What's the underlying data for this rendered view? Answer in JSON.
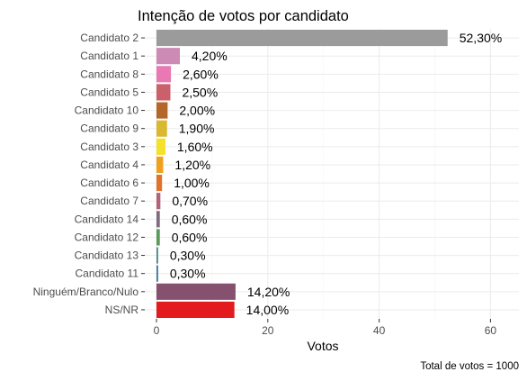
{
  "chart_data": {
    "type": "bar",
    "orientation": "horizontal",
    "title": "Intenção de votos por candidato",
    "xlabel": "Votos",
    "ylabel": "",
    "caption": "Total de votos = 1000",
    "xlim": [
      0,
      62
    ],
    "x_ticks": [
      0,
      20,
      40,
      60
    ],
    "grid": true,
    "legend": "none",
    "categories": [
      "Candidato 2",
      "Candidato 1",
      "Candidato 8",
      "Candidato 5",
      "Candidato 10",
      "Candidato 9",
      "Candidato 3",
      "Candidato 4",
      "Candidato 6",
      "Candidato 7",
      "Candidato 14",
      "Candidato 12",
      "Candidato 13",
      "Candidato 11",
      "Ninguém/Branco/Nulo",
      "NS/NR"
    ],
    "values": [
      52.3,
      4.2,
      2.6,
      2.5,
      2.0,
      1.9,
      1.6,
      1.2,
      1.0,
      0.7,
      0.6,
      0.6,
      0.3,
      0.3,
      14.2,
      14.0
    ],
    "value_labels": [
      "52,30%",
      "4,20%",
      "2,60%",
      "2,50%",
      "2,00%",
      "1,90%",
      "1,60%",
      "1,20%",
      "1,00%",
      "0,70%",
      "0,60%",
      "0,60%",
      "0,30%",
      "0,30%",
      "14,20%",
      "14,00%"
    ],
    "colors": [
      "#9b9b9b",
      "#cc8ab5",
      "#e879b2",
      "#c9606a",
      "#b4672a",
      "#d9b92f",
      "#f4e128",
      "#f1a01d",
      "#e0732c",
      "#b46279",
      "#7f6d7f",
      "#5c9a5c",
      "#4f8a8a",
      "#3b7aa3",
      "#86506f",
      "#e31b1e"
    ]
  }
}
